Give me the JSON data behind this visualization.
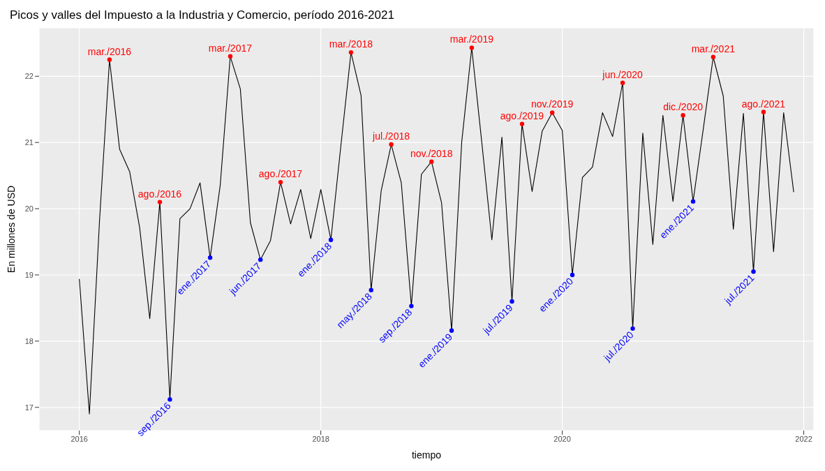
{
  "chart_data": {
    "type": "line",
    "title": "Picos y valles del Impuesto a la Industria y Comercio, período 2016-2021",
    "xlabel": "tiempo",
    "ylabel": "En millones de USD",
    "x": [
      "2016-01",
      "2016-02",
      "2016-03",
      "2016-04",
      "2016-05",
      "2016-06",
      "2016-07",
      "2016-08",
      "2016-09",
      "2016-10",
      "2016-11",
      "2016-12",
      "2017-01",
      "2017-02",
      "2017-03",
      "2017-04",
      "2017-05",
      "2017-06",
      "2017-07",
      "2017-08",
      "2017-09",
      "2017-10",
      "2017-11",
      "2017-12",
      "2018-01",
      "2018-02",
      "2018-03",
      "2018-04",
      "2018-05",
      "2018-06",
      "2018-07",
      "2018-08",
      "2018-09",
      "2018-10",
      "2018-11",
      "2018-12",
      "2019-01",
      "2019-02",
      "2019-03",
      "2019-04",
      "2019-05",
      "2019-06",
      "2019-07",
      "2019-08",
      "2019-09",
      "2019-10",
      "2019-11",
      "2019-12",
      "2020-01",
      "2020-02",
      "2020-03",
      "2020-04",
      "2020-05",
      "2020-06",
      "2020-07",
      "2020-08",
      "2020-09",
      "2020-10",
      "2020-11",
      "2020-12",
      "2021-01",
      "2021-02",
      "2021-03",
      "2021-04",
      "2021-05",
      "2021-06",
      "2021-07",
      "2021-08",
      "2021-09",
      "2021-10",
      "2021-11",
      "2021-12"
    ],
    "series": [
      {
        "color": "#000000",
        "marker": "none",
        "values": [
          18.94,
          16.9,
          19.8,
          22.25,
          20.9,
          20.56,
          19.71,
          18.34,
          20.1,
          17.12,
          19.85,
          20.0,
          20.39,
          19.26,
          20.35,
          22.3,
          21.81,
          19.79,
          19.23,
          19.52,
          20.4,
          19.77,
          20.29,
          19.55,
          20.29,
          19.53,
          20.96,
          22.36,
          21.71,
          18.77,
          20.27,
          20.97,
          20.39,
          18.53,
          20.52,
          20.71,
          20.09,
          18.16,
          21.0,
          22.43,
          21.0,
          19.53,
          21.08,
          18.6,
          21.28,
          20.26,
          21.17,
          21.45,
          21.18,
          19.0,
          20.47,
          20.63,
          21.45,
          21.09,
          21.9,
          18.19,
          21.14,
          19.46,
          21.41,
          20.11,
          21.41,
          20.11,
          21.19,
          22.29,
          21.7,
          19.69,
          21.44,
          19.05,
          21.46,
          19.35,
          21.45,
          20.25
        ]
      },
      {
        "type": "scatter",
        "color": "#ff0000",
        "marker": "circle",
        "x": [
          "2016-04",
          "2016-09",
          "2017-04",
          "2017-09",
          "2018-04",
          "2018-08",
          "2018-12",
          "2019-04",
          "2019-09",
          "2019-12",
          "2020-07",
          "2021-01",
          "2021-04",
          "2021-09"
        ],
        "values": [
          22.25,
          20.1,
          22.3,
          20.4,
          22.36,
          20.97,
          20.71,
          22.43,
          21.28,
          21.45,
          21.9,
          21.41,
          22.29,
          21.46
        ]
      },
      {
        "type": "scatter",
        "color": "#0000ff",
        "marker": "circle",
        "x": [
          "2016-10",
          "2017-02",
          "2017-07",
          "2018-02",
          "2018-06",
          "2018-10",
          "2019-02",
          "2019-08",
          "2020-02",
          "2020-08",
          "2021-02",
          "2021-08"
        ],
        "values": [
          17.12,
          19.26,
          19.23,
          19.53,
          18.77,
          18.53,
          18.16,
          18.6,
          19.0,
          18.19,
          20.11,
          19.05
        ]
      }
    ],
    "annotations": [
      {
        "text": "mar./2016",
        "x": "2016-04",
        "y": 22.25
      },
      {
        "text": "ago./2016",
        "x": "2016-09",
        "y": 20.1
      },
      {
        "text": "mar./2017",
        "x": "2017-04",
        "y": 22.3
      },
      {
        "text": "ago./2017",
        "x": "2017-09",
        "y": 20.4
      },
      {
        "text": "mar./2018",
        "x": "2018-04",
        "y": 22.36
      },
      {
        "text": "jul./2018",
        "x": "2018-08",
        "y": 20.97
      },
      {
        "text": "nov./2018",
        "x": "2018-12",
        "y": 20.71
      },
      {
        "text": "mar./2019",
        "x": "2019-04",
        "y": 22.43
      },
      {
        "text": "ago./2019",
        "x": "2019-09",
        "y": 21.28
      },
      {
        "text": "nov./2019",
        "x": "2019-12",
        "y": 21.45
      },
      {
        "text": "jun./2020",
        "x": "2020-07",
        "y": 21.9
      },
      {
        "text": "dic./2020",
        "x": "2021-01",
        "y": 21.41
      },
      {
        "text": "mar./2021",
        "x": "2021-04",
        "y": 22.29
      },
      {
        "text": "ago./2021",
        "x": "2021-09",
        "y": 21.46
      },
      {
        "text": "sep./2016",
        "x": "2016-10",
        "y": 17.12
      },
      {
        "text": "ene./2017",
        "x": "2017-02",
        "y": 19.26
      },
      {
        "text": "jun./2017",
        "x": "2017-07",
        "y": 19.23
      },
      {
        "text": "ene./2018",
        "x": "2018-02",
        "y": 19.53
      },
      {
        "text": "may./2018",
        "x": "2018-06",
        "y": 18.77
      },
      {
        "text": "sep./2018",
        "x": "2018-10",
        "y": 18.53
      },
      {
        "text": "ene./2019",
        "x": "2019-02",
        "y": 18.16
      },
      {
        "text": "jul./2019",
        "x": "2019-08",
        "y": 18.6
      },
      {
        "text": "ene./2020",
        "x": "2020-02",
        "y": 19.0
      },
      {
        "text": "jul./2020",
        "x": "2020-08",
        "y": 18.19
      },
      {
        "text": "ene./2021",
        "x": "2021-02",
        "y": 20.11
      },
      {
        "text": "jul./2021",
        "x": "2021-08",
        "y": 19.05
      }
    ],
    "xlim": [
      "2015-09",
      "2022-02"
    ],
    "xticks": [
      "2016",
      "2018",
      "2020",
      "2022"
    ],
    "ylim": [
      16.65,
      22.73
    ],
    "yticks": [
      17,
      18,
      19,
      20,
      21,
      22
    ],
    "grid": true,
    "legend": false
  }
}
